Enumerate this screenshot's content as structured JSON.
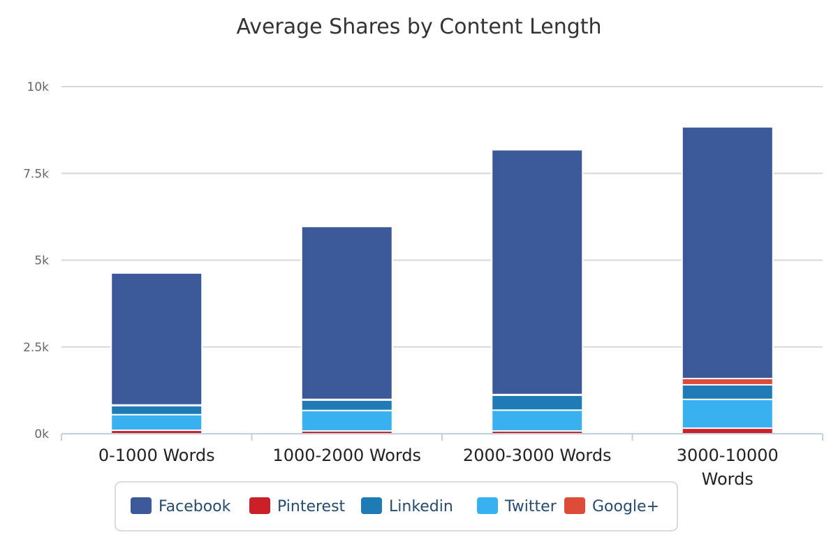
{
  "chart_data": {
    "type": "bar",
    "stacked": true,
    "title": "Average Shares by Content Length",
    "xlabel": "",
    "ylabel": "",
    "ylim": [
      0,
      10000
    ],
    "yticks": [
      {
        "value": 0,
        "label": "0k"
      },
      {
        "value": 2500,
        "label": "2.5k"
      },
      {
        "value": 5000,
        "label": "5k"
      },
      {
        "value": 7500,
        "label": "7.5k"
      },
      {
        "value": 10000,
        "label": "10k"
      }
    ],
    "categories": [
      [
        "0-1000 Words"
      ],
      [
        "1000-2000 Words"
      ],
      [
        "2000-3000 Words"
      ],
      [
        "3000-10000",
        "Words"
      ]
    ],
    "stack_order": [
      "Pinterest",
      "Twitter",
      "Linkedin",
      "Google+",
      "Facebook"
    ],
    "series": [
      {
        "name": "Facebook",
        "color": "#3b5998",
        "values": [
          3800,
          4980,
          7050,
          7250
        ]
      },
      {
        "name": "Pinterest",
        "color": "#cb2027",
        "values": [
          100,
          80,
          80,
          160
        ]
      },
      {
        "name": "Linkedin",
        "color": "#1f7bb6",
        "values": [
          260,
          300,
          430,
          420
        ]
      },
      {
        "name": "Twitter",
        "color": "#39b0ef",
        "values": [
          450,
          590,
          600,
          830
        ]
      },
      {
        "name": "Google+",
        "color": "#dd4b39",
        "values": [
          20,
          20,
          20,
          180
        ]
      }
    ],
    "grid": true,
    "legend": {
      "position": "bottom-center",
      "items": [
        "Facebook",
        "Pinterest",
        "Linkedin",
        "Twitter",
        "Google+"
      ]
    }
  }
}
